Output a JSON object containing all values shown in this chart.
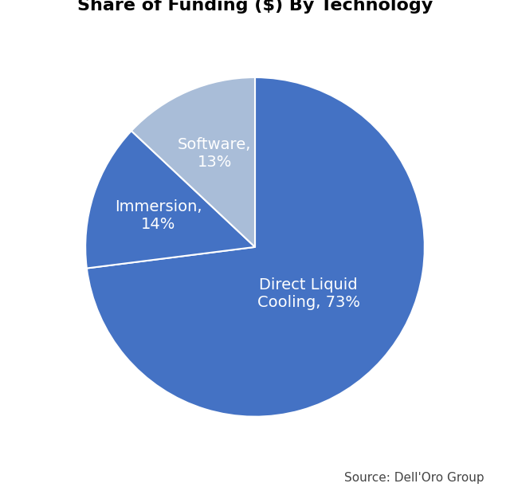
{
  "title": "Share of Funding ($) By Technology",
  "slices": [
    {
      "label": "Direct Liquid\nCooling, 73%",
      "value": 73,
      "color": "#4472C4",
      "text_color": "white",
      "label_r": 0.42
    },
    {
      "label": "Immersion,\n14%",
      "value": 14,
      "color": "#4472C4",
      "text_color": "white",
      "label_r": 0.6
    },
    {
      "label": "Software,\n13%",
      "value": 13,
      "color": "#A9BDD8",
      "text_color": "white",
      "label_r": 0.6
    }
  ],
  "start_angle": 90,
  "counterclock": false,
  "source_text": "Source: Dell'Oro Group",
  "background_color": "#ffffff",
  "title_fontsize": 16,
  "label_fontsize": 14,
  "source_fontsize": 11,
  "wedge_linewidth": 1.5,
  "wedge_edgecolor": "#ffffff"
}
